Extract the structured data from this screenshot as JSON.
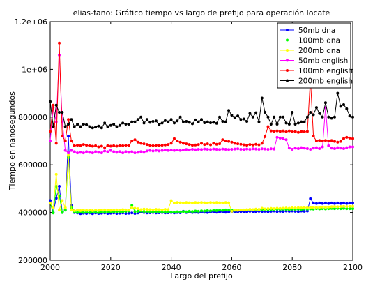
{
  "chart_data": {
    "type": "line",
    "title": "elias-fano: Gráfico tiempo vs largo de prefijo para operación locate",
    "xlabel": "Largo del prefijo",
    "ylabel": "Tiempo en nanosegundos",
    "xlim": [
      2000,
      2100
    ],
    "ylim": [
      200000,
      1200000
    ],
    "xticks": [
      2000,
      2020,
      2040,
      2060,
      2080,
      2100
    ],
    "xtick_labels": [
      "2000",
      "2020",
      "2040",
      "2060",
      "2080",
      "2100"
    ],
    "yticks": [
      200000,
      400000,
      600000,
      800000,
      1000000,
      1200000
    ],
    "ytick_labels": [
      "200000",
      "400000",
      "600000",
      "800000",
      "1e+06",
      "1.2e+06"
    ],
    "grid": false,
    "legend_position": "top-right",
    "x": [
      2000,
      2001,
      2002,
      2003,
      2004,
      2005,
      2006,
      2007,
      2008,
      2009,
      2010,
      2011,
      2012,
      2013,
      2014,
      2015,
      2016,
      2017,
      2018,
      2019,
      2020,
      2021,
      2022,
      2023,
      2024,
      2025,
      2026,
      2027,
      2028,
      2029,
      2030,
      2031,
      2032,
      2033,
      2034,
      2035,
      2036,
      2037,
      2038,
      2039,
      2040,
      2041,
      2042,
      2043,
      2044,
      2045,
      2046,
      2047,
      2048,
      2049,
      2050,
      2051,
      2052,
      2053,
      2054,
      2055,
      2056,
      2057,
      2058,
      2059,
      2060,
      2061,
      2062,
      2063,
      2064,
      2065,
      2066,
      2067,
      2068,
      2069,
      2070,
      2071,
      2072,
      2073,
      2074,
      2075,
      2076,
      2077,
      2078,
      2079,
      2080,
      2081,
      2082,
      2083,
      2084,
      2085,
      2086,
      2087,
      2088,
      2089,
      2090,
      2091,
      2092,
      2093,
      2094,
      2095,
      2096,
      2097,
      2098,
      2099,
      2100
    ],
    "series": [
      {
        "name": "50mb dna",
        "color": "#0000ff",
        "values": [
          450000,
          400000,
          460000,
          510000,
          400000,
          410000,
          720000,
          430000,
          400000,
          398000,
          395000,
          397000,
          396000,
          398000,
          395000,
          398000,
          396000,
          397000,
          398000,
          396000,
          397000,
          398000,
          396000,
          397000,
          398000,
          396000,
          397000,
          398000,
          396000,
          398000,
          402000,
          400000,
          398000,
          399000,
          400000,
          398000,
          399000,
          400000,
          398000,
          399000,
          400000,
          398000,
          400000,
          399000,
          405000,
          400000,
          402000,
          400000,
          401000,
          400000,
          402000,
          401000,
          400000,
          402000,
          403000,
          401000,
          402000,
          403000,
          401000,
          402000,
          404000,
          402000,
          403000,
          404000,
          402000,
          403000,
          405000,
          404000,
          403000,
          405000,
          404000,
          405000,
          403000,
          405000,
          406000,
          404000,
          405000,
          404000,
          406000,
          405000,
          406000,
          405000,
          404000,
          406000,
          405000,
          406000,
          458000,
          440000,
          438000,
          440000,
          438000,
          440000,
          438000,
          440000,
          438000,
          440000,
          438000,
          440000,
          438000,
          440000,
          440000
        ]
      },
      {
        "name": "100mb dna",
        "color": "#00ff00",
        "values": [
          440000,
          398000,
          510000,
          470000,
          400000,
          410000,
          630000,
          420000,
          402000,
          400000,
          402000,
          400000,
          401000,
          400000,
          402000,
          401000,
          400000,
          402000,
          401000,
          403000,
          404000,
          402000,
          403000,
          404000,
          402000,
          405000,
          406000,
          430000,
          404000,
          405000,
          406000,
          404000,
          405000,
          403000,
          402000,
          404000,
          403000,
          402000,
          401000,
          403000,
          402000,
          401000,
          403000,
          402000,
          404000,
          403000,
          405000,
          404000,
          406000,
          405000,
          407000,
          406000,
          408000,
          407000,
          409000,
          408000,
          410000,
          409000,
          411000,
          410000,
          410000,
          409000,
          410000,
          411000,
          410000,
          411000,
          412000,
          411000,
          412000,
          411000,
          412000,
          413000,
          412000,
          413000,
          412000,
          414000,
          413000,
          414000,
          413000,
          412000,
          414000,
          413000,
          414000,
          413000,
          415000,
          414000,
          415000,
          414000,
          416000,
          415000,
          416000,
          415000,
          416000,
          417000,
          416000,
          417000,
          416000,
          417000,
          416000,
          416000,
          416000
        ]
      },
      {
        "name": "200mb dna",
        "color": "#ffff00",
        "values": [
          440000,
          420000,
          560000,
          410000,
          450000,
          420000,
          640000,
          410000,
          408000,
          410000,
          408000,
          410000,
          409000,
          410000,
          408000,
          410000,
          409000,
          410000,
          411000,
          410000,
          409000,
          410000,
          411000,
          410000,
          412000,
          411000,
          410000,
          420000,
          418000,
          416000,
          412000,
          414000,
          413000,
          412000,
          411000,
          413000,
          412000,
          411000,
          413000,
          412000,
          450000,
          440000,
          442000,
          441000,
          440000,
          442000,
          441000,
          440000,
          442000,
          441000,
          442000,
          441000,
          440000,
          442000,
          441000,
          442000,
          441000,
          440000,
          442000,
          441000,
          405000,
          410000,
          409000,
          410000,
          411000,
          412000,
          413000,
          412000,
          414000,
          413000,
          418000,
          415000,
          416000,
          417000,
          416000,
          418000,
          417000,
          418000,
          419000,
          418000,
          420000,
          419000,
          420000,
          419000,
          421000,
          420000,
          421000,
          422000,
          421000,
          422000,
          423000,
          422000,
          423000,
          424000,
          425000,
          424000,
          425000,
          426000,
          425000,
          426000,
          426000
        ]
      },
      {
        "name": "50mb english",
        "color": "#ff00ff",
        "values": [
          700000,
          840000,
          780000,
          1060000,
          780000,
          660000,
          650000,
          660000,
          655000,
          650000,
          652000,
          650000,
          655000,
          652000,
          650000,
          655000,
          652000,
          650000,
          658000,
          655000,
          660000,
          655000,
          652000,
          655000,
          650000,
          655000,
          652000,
          655000,
          650000,
          652000,
          655000,
          652000,
          658000,
          660000,
          658000,
          660000,
          658000,
          660000,
          662000,
          660000,
          662000,
          660000,
          662000,
          660000,
          662000,
          664000,
          662000,
          665000,
          663000,
          665000,
          664000,
          666000,
          665000,
          664000,
          666000,
          665000,
          664000,
          666000,
          665000,
          664000,
          665000,
          666000,
          667000,
          665000,
          664000,
          666000,
          665000,
          667000,
          666000,
          665000,
          667000,
          666000,
          665000,
          667000,
          666000,
          715000,
          712000,
          710000,
          705000,
          670000,
          665000,
          670000,
          668000,
          672000,
          670000,
          668000,
          665000,
          670000,
          672000,
          668000,
          675000,
          840000,
          680000,
          670000,
          668000,
          672000,
          670000,
          668000,
          672000,
          675000,
          675000
        ]
      },
      {
        "name": "100mb english",
        "color": "#ff0000",
        "values": [
          740000,
          850000,
          690000,
          1110000,
          720000,
          700000,
          790000,
          700000,
          680000,
          682000,
          680000,
          685000,
          682000,
          680000,
          678000,
          680000,
          675000,
          678000,
          672000,
          680000,
          678000,
          680000,
          678000,
          682000,
          680000,
          682000,
          680000,
          700000,
          705000,
          695000,
          690000,
          688000,
          685000,
          682000,
          680000,
          682000,
          680000,
          682000,
          683000,
          685000,
          690000,
          710000,
          700000,
          695000,
          690000,
          688000,
          685000,
          682000,
          683000,
          685000,
          690000,
          685000,
          688000,
          684000,
          690000,
          686000,
          688000,
          705000,
          700000,
          698000,
          695000,
          690000,
          688000,
          686000,
          684000,
          682000,
          685000,
          683000,
          686000,
          684000,
          690000,
          718000,
          760000,
          742000,
          740000,
          742000,
          740000,
          742000,
          738000,
          742000,
          738000,
          740000,
          736000,
          740000,
          738000,
          740000,
          960000,
          720000,
          700000,
          702000,
          700000,
          702000,
          700000,
          702000,
          698000,
          695000,
          698000,
          710000,
          715000,
          712000,
          710000
        ]
      },
      {
        "name": "200mb english",
        "color": "#000000",
        "values": [
          865000,
          760000,
          850000,
          820000,
          820000,
          760000,
          770000,
          790000,
          760000,
          770000,
          760000,
          770000,
          768000,
          760000,
          755000,
          758000,
          762000,
          755000,
          775000,
          760000,
          765000,
          770000,
          760000,
          765000,
          775000,
          770000,
          770000,
          780000,
          780000,
          790000,
          800000,
          775000,
          790000,
          778000,
          782000,
          784000,
          768000,
          775000,
          785000,
          780000,
          790000,
          775000,
          784000,
          800000,
          780000,
          782000,
          778000,
          772000,
          788000,
          780000,
          790000,
          776000,
          780000,
          776000,
          778000,
          774000,
          800000,
          782000,
          780000,
          828000,
          808000,
          798000,
          805000,
          790000,
          792000,
          782000,
          815000,
          800000,
          818000,
          780000,
          880000,
          820000,
          800000,
          770000,
          800000,
          770000,
          800000,
          800000,
          775000,
          770000,
          820000,
          770000,
          775000,
          780000,
          780000,
          800000,
          820000,
          810000,
          840000,
          815000,
          800000,
          860000,
          800000,
          795000,
          800000,
          900000,
          845000,
          852000,
          835000,
          805000,
          800000
        ]
      }
    ]
  }
}
